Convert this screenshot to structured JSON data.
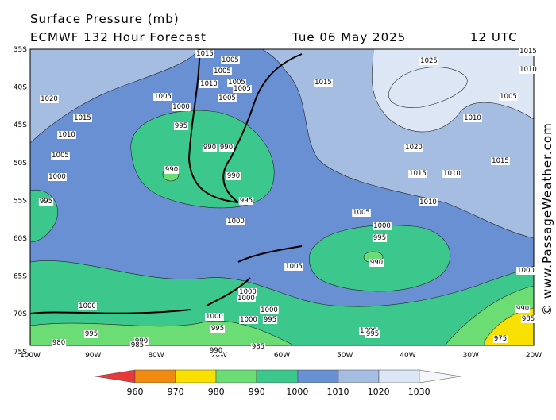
{
  "header": {
    "title": "Surface Pressure (mb)",
    "model": "ECMWF 132 Hour Forecast",
    "date": "Tue 06 May 2025",
    "time": "12 UTC"
  },
  "lat_labels": [
    "35S",
    "40S",
    "45S",
    "50S",
    "55S",
    "60S",
    "65S",
    "70S",
    "75S"
  ],
  "lon_labels": [
    "100W",
    "90W",
    "80W",
    "70W",
    "60W",
    "50W",
    "40W",
    "30W",
    "20W"
  ],
  "contour_labels": [
    "1015",
    "1005",
    "1005",
    "1010",
    "1005",
    "1005",
    "1005",
    "1005",
    "1000",
    "1015",
    "1025",
    "1020",
    "1015",
    "1010",
    "1005",
    "1000",
    "995",
    "995",
    "990",
    "990",
    "990",
    "990",
    "995",
    "1000",
    "1005",
    "1000",
    "995",
    "990",
    "1005",
    "1000",
    "1000",
    "1000",
    "1000",
    "1000",
    "1000",
    "995",
    "995",
    "1000",
    "995",
    "990",
    "990",
    "985",
    "980",
    "985",
    "1000",
    "995",
    "1020",
    "1015",
    "1010",
    "1010",
    "1010",
    "1005",
    "1015",
    "990",
    "985",
    "975",
    "1015",
    "1010"
  ],
  "colorbar": [
    "960",
    "970",
    "980",
    "990",
    "1000",
    "1010",
    "1020",
    "1030"
  ],
  "copyright": "© www.PassageWeather.com"
}
